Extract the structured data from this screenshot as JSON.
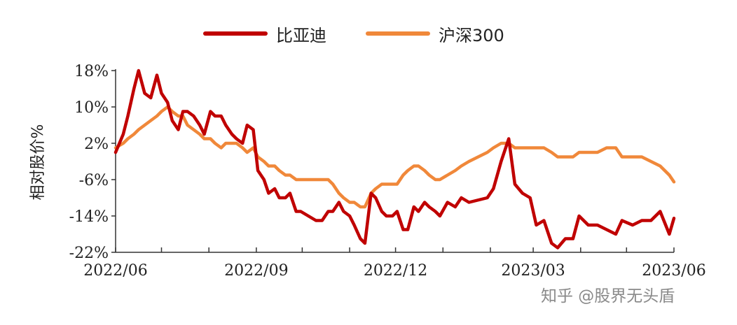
{
  "chart_data": {
    "type": "line",
    "ylabel": "相对股价%",
    "ylim": [
      -22,
      18
    ],
    "yticks": [
      18,
      10,
      2,
      -6,
      -14,
      -22
    ],
    "ytick_labels": [
      "18%",
      "10%",
      "2%",
      "-6%",
      "-14%",
      "-22%"
    ],
    "xlim": [
      "2022-06-01",
      "2023-06-01"
    ],
    "xticks": [
      "2022-06-01",
      "2022-09-01",
      "2022-12-01",
      "2023-03-01",
      "2023-06-01"
    ],
    "xtick_labels": [
      "2022/06",
      "2022/09",
      "2022/12",
      "2023/03",
      "2023/06"
    ],
    "grid": false,
    "legend_position": "top",
    "series": [
      {
        "name": "比亚迪",
        "color": "#c00000",
        "x": [
          "2022-06-01",
          "2022-06-06",
          "2022-06-09",
          "2022-06-13",
          "2022-06-16",
          "2022-06-20",
          "2022-06-24",
          "2022-06-28",
          "2022-07-01",
          "2022-07-05",
          "2022-07-08",
          "2022-07-12",
          "2022-07-15",
          "2022-07-18",
          "2022-07-22",
          "2022-07-26",
          "2022-07-29",
          "2022-08-02",
          "2022-08-05",
          "2022-08-09",
          "2022-08-12",
          "2022-08-16",
          "2022-08-19",
          "2022-08-23",
          "2022-08-26",
          "2022-08-30",
          "2022-09-02",
          "2022-09-06",
          "2022-09-09",
          "2022-09-13",
          "2022-09-16",
          "2022-09-20",
          "2022-09-23",
          "2022-09-27",
          "2022-09-30",
          "2022-10-10",
          "2022-10-14",
          "2022-10-18",
          "2022-10-21",
          "2022-10-25",
          "2022-10-28",
          "2022-11-01",
          "2022-11-04",
          "2022-11-08",
          "2022-11-11",
          "2022-11-15",
          "2022-11-18",
          "2022-11-22",
          "2022-11-25",
          "2022-11-29",
          "2022-12-02",
          "2022-12-06",
          "2022-12-09",
          "2022-12-13",
          "2022-12-16",
          "2022-12-20",
          "2022-12-23",
          "2022-12-27",
          "2022-12-30",
          "2023-01-04",
          "2023-01-09",
          "2023-01-13",
          "2023-01-18",
          "2023-01-30",
          "2023-02-03",
          "2023-02-08",
          "2023-02-13",
          "2023-02-17",
          "2023-02-22",
          "2023-02-27",
          "2023-03-03",
          "2023-03-08",
          "2023-03-13",
          "2023-03-17",
          "2023-03-22",
          "2023-03-27",
          "2023-03-31",
          "2023-04-06",
          "2023-04-12",
          "2023-04-18",
          "2023-04-24",
          "2023-04-28",
          "2023-05-05",
          "2023-05-11",
          "2023-05-17",
          "2023-05-23",
          "2023-05-29",
          "2023-06-01"
        ],
        "y": [
          0,
          4,
          8,
          14,
          18,
          13,
          12,
          17,
          13,
          11,
          7,
          5,
          9,
          9,
          8,
          6,
          4,
          9,
          8,
          8,
          6,
          4,
          3,
          2,
          6,
          5,
          -4,
          -6,
          -9,
          -8,
          -10,
          -10,
          -9,
          -13,
          -13,
          -15,
          -15,
          -13,
          -13,
          -11,
          -13,
          -14,
          -16,
          -19,
          -20,
          -9,
          -10,
          -13,
          -14,
          -14,
          -13,
          -17,
          -17,
          -12,
          -13,
          -11,
          -12,
          -13,
          -14,
          -11,
          -12,
          -10,
          -11,
          -10,
          -8,
          -2,
          3,
          -7,
          -9,
          -10,
          -16,
          -15,
          -20,
          -21,
          -19,
          -19,
          -14,
          -16,
          -16,
          -17,
          -18,
          -15,
          -16,
          -15,
          -15,
          -13,
          -18,
          -14.5
        ]
      },
      {
        "name": "沪深300",
        "color": "#f0883a",
        "x": [
          "2022-06-01",
          "2022-06-06",
          "2022-06-09",
          "2022-06-13",
          "2022-06-16",
          "2022-06-20",
          "2022-06-24",
          "2022-06-28",
          "2022-07-01",
          "2022-07-05",
          "2022-07-08",
          "2022-07-12",
          "2022-07-15",
          "2022-07-18",
          "2022-07-22",
          "2022-07-26",
          "2022-07-29",
          "2022-08-02",
          "2022-08-05",
          "2022-08-09",
          "2022-08-12",
          "2022-08-16",
          "2022-08-19",
          "2022-08-23",
          "2022-08-26",
          "2022-08-30",
          "2022-09-02",
          "2022-09-06",
          "2022-09-09",
          "2022-09-13",
          "2022-09-16",
          "2022-09-20",
          "2022-09-23",
          "2022-09-27",
          "2022-09-30",
          "2022-10-10",
          "2022-10-14",
          "2022-10-18",
          "2022-10-21",
          "2022-10-25",
          "2022-10-28",
          "2022-11-01",
          "2022-11-04",
          "2022-11-08",
          "2022-11-11",
          "2022-11-15",
          "2022-11-18",
          "2022-11-22",
          "2022-11-25",
          "2022-11-29",
          "2022-12-02",
          "2022-12-06",
          "2022-12-09",
          "2022-12-13",
          "2022-12-16",
          "2022-12-20",
          "2022-12-23",
          "2022-12-27",
          "2022-12-30",
          "2023-01-04",
          "2023-01-09",
          "2023-01-13",
          "2023-01-18",
          "2023-01-30",
          "2023-02-03",
          "2023-02-08",
          "2023-02-13",
          "2023-02-17",
          "2023-02-22",
          "2023-02-27",
          "2023-03-03",
          "2023-03-08",
          "2023-03-13",
          "2023-03-17",
          "2023-03-22",
          "2023-03-27",
          "2023-03-31",
          "2023-04-06",
          "2023-04-12",
          "2023-04-18",
          "2023-04-24",
          "2023-04-28",
          "2023-05-05",
          "2023-05-11",
          "2023-05-17",
          "2023-05-23",
          "2023-05-29",
          "2023-06-01"
        ],
        "y": [
          1,
          2,
          3,
          4,
          5,
          6,
          7,
          8,
          9,
          10,
          9,
          8,
          8,
          6,
          5,
          4,
          3,
          3,
          2,
          1,
          2,
          2,
          2,
          1,
          0,
          1,
          -1,
          -2,
          -3,
          -3,
          -4,
          -5,
          -5,
          -6,
          -6,
          -6,
          -6,
          -6,
          -7,
          -9,
          -10,
          -11,
          -11,
          -12,
          -12,
          -9,
          -8,
          -7,
          -7,
          -7,
          -7,
          -5,
          -4,
          -3,
          -3,
          -4,
          -5,
          -6,
          -6,
          -5,
          -4,
          -3,
          -2,
          0,
          1,
          2,
          2,
          1,
          1,
          1,
          1,
          1,
          0,
          -1,
          -1,
          -1,
          0,
          0,
          0,
          1,
          1,
          -1,
          -1,
          -1,
          -2,
          -3,
          -5,
          -6.5
        ]
      }
    ]
  },
  "watermark": "知乎 @股界无头盾"
}
